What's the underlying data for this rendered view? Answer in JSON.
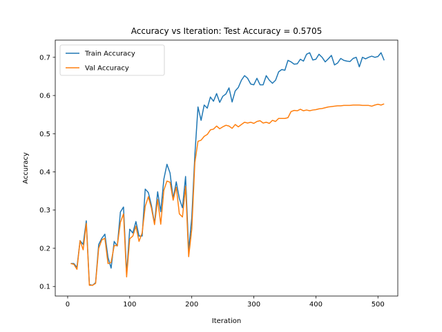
{
  "chart_data": {
    "type": "line",
    "title": "Accuracy vs Iteration: Test Accuracy = 0.5705",
    "xlabel": "Iteration",
    "ylabel": "Accuracy",
    "xlim": [
      -20,
      532
    ],
    "ylim": [
      0.075,
      0.745
    ],
    "xticks": [
      0,
      100,
      200,
      300,
      400,
      500
    ],
    "yticks": [
      0.1,
      0.2,
      0.3,
      0.4,
      0.5,
      0.6,
      0.7
    ],
    "grid": false,
    "legend_position": "top-left",
    "series": [
      {
        "name": "Train Accuracy",
        "color": "#1f77b4",
        "x": [
          5,
          10,
          15,
          20,
          25,
          30,
          35,
          40,
          45,
          50,
          55,
          60,
          65,
          70,
          75,
          80,
          85,
          90,
          95,
          100,
          105,
          110,
          115,
          120,
          125,
          130,
          135,
          140,
          145,
          150,
          155,
          160,
          165,
          170,
          175,
          180,
          185,
          190,
          195,
          200,
          205,
          210,
          215,
          220,
          225,
          230,
          235,
          240,
          245,
          250,
          255,
          260,
          265,
          270,
          275,
          280,
          285,
          290,
          295,
          300,
          305,
          310,
          315,
          320,
          325,
          330,
          335,
          340,
          345,
          350,
          355,
          360,
          365,
          370,
          375,
          380,
          385,
          390,
          395,
          400,
          405,
          410,
          415,
          420,
          425,
          430,
          435,
          440,
          445,
          450,
          455,
          460,
          465,
          470,
          475,
          480,
          485,
          490,
          495,
          500,
          505,
          510
        ],
        "y": [
          0.16,
          0.16,
          0.15,
          0.22,
          0.21,
          0.272,
          0.105,
          0.103,
          0.11,
          0.21,
          0.226,
          0.237,
          0.176,
          0.148,
          0.218,
          0.206,
          0.295,
          0.308,
          0.133,
          0.25,
          0.24,
          0.27,
          0.232,
          0.232,
          0.355,
          0.346,
          0.312,
          0.265,
          0.348,
          0.296,
          0.381,
          0.42,
          0.397,
          0.33,
          0.374,
          0.33,
          0.306,
          0.388,
          0.195,
          0.28,
          0.445,
          0.57,
          0.535,
          0.575,
          0.567,
          0.596,
          0.585,
          0.605,
          0.582,
          0.598,
          0.604,
          0.62,
          0.583,
          0.612,
          0.621,
          0.64,
          0.652,
          0.645,
          0.63,
          0.628,
          0.645,
          0.628,
          0.628,
          0.652,
          0.64,
          0.632,
          0.64,
          0.662,
          0.668,
          0.666,
          0.692,
          0.688,
          0.682,
          0.683,
          0.695,
          0.69,
          0.708,
          0.712,
          0.693,
          0.695,
          0.708,
          0.7,
          0.688,
          0.696,
          0.705,
          0.68,
          0.685,
          0.697,
          0.692,
          0.69,
          0.689,
          0.697,
          0.7,
          0.675,
          0.7,
          0.696,
          0.7,
          0.703,
          0.7,
          0.702,
          0.712,
          0.692
        ]
      },
      {
        "name": "Val Accuracy",
        "color": "#ff7f0e",
        "x": [
          5,
          10,
          15,
          20,
          25,
          30,
          35,
          40,
          45,
          50,
          55,
          60,
          65,
          70,
          75,
          80,
          85,
          90,
          95,
          100,
          105,
          110,
          115,
          120,
          125,
          130,
          135,
          140,
          145,
          150,
          155,
          160,
          165,
          170,
          175,
          180,
          185,
          190,
          195,
          200,
          205,
          210,
          215,
          220,
          225,
          230,
          235,
          240,
          245,
          250,
          255,
          260,
          265,
          270,
          275,
          280,
          285,
          290,
          295,
          300,
          305,
          310,
          315,
          320,
          325,
          330,
          335,
          340,
          345,
          350,
          355,
          360,
          365,
          370,
          375,
          380,
          385,
          390,
          395,
          400,
          405,
          410,
          415,
          420,
          425,
          430,
          435,
          440,
          445,
          450,
          455,
          460,
          465,
          470,
          475,
          480,
          485,
          490,
          495,
          500,
          505,
          510
        ],
        "y": [
          0.16,
          0.158,
          0.145,
          0.22,
          0.196,
          0.265,
          0.103,
          0.103,
          0.108,
          0.2,
          0.222,
          0.226,
          0.16,
          0.163,
          0.207,
          0.207,
          0.268,
          0.29,
          0.125,
          0.225,
          0.232,
          0.258,
          0.218,
          0.24,
          0.31,
          0.335,
          0.305,
          0.262,
          0.328,
          0.263,
          0.352,
          0.376,
          0.373,
          0.326,
          0.36,
          0.29,
          0.282,
          0.362,
          0.178,
          0.25,
          0.425,
          0.48,
          0.483,
          0.493,
          0.498,
          0.51,
          0.512,
          0.52,
          0.513,
          0.518,
          0.522,
          0.52,
          0.514,
          0.524,
          0.518,
          0.524,
          0.53,
          0.528,
          0.53,
          0.527,
          0.532,
          0.534,
          0.528,
          0.53,
          0.527,
          0.535,
          0.532,
          0.54,
          0.54,
          0.54,
          0.542,
          0.558,
          0.561,
          0.56,
          0.564,
          0.56,
          0.562,
          0.56,
          0.562,
          0.563,
          0.565,
          0.566,
          0.568,
          0.57,
          0.571,
          0.572,
          0.573,
          0.573,
          0.574,
          0.574,
          0.574,
          0.575,
          0.575,
          0.575,
          0.574,
          0.574,
          0.574,
          0.572,
          0.575,
          0.577,
          0.575,
          0.578
        ]
      }
    ]
  }
}
